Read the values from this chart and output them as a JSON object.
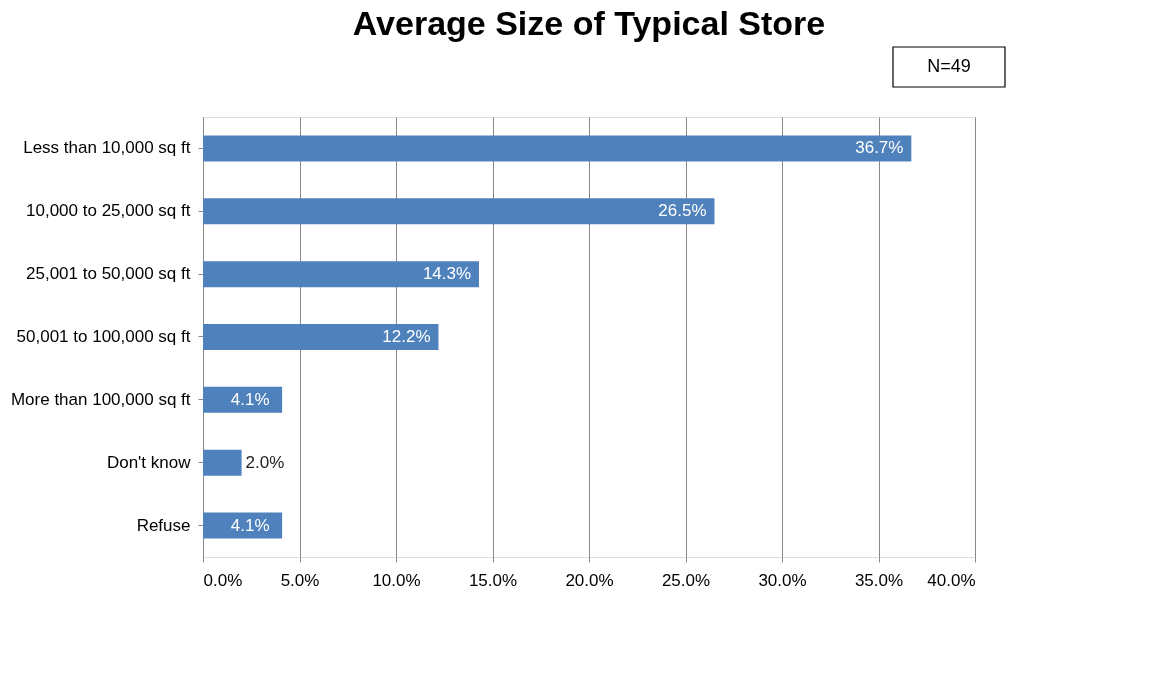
{
  "chart_data": {
    "type": "bar",
    "orientation": "horizontal",
    "title": "Average Size of Typical Store",
    "categories": [
      "Less than 10,000 sq ft",
      "10,000 to 25,000 sq ft",
      "25,001 to 50,000 sq ft",
      "50,001 to 100,000 sq ft",
      "More than 100,000 sq ft",
      "Don't know",
      "Refuse"
    ],
    "values": [
      36.7,
      26.5,
      14.3,
      12.2,
      4.1,
      2.0,
      4.1
    ],
    "value_labels": [
      "36.7%",
      "26.5%",
      "14.3%",
      "12.2%",
      "4.1%",
      "2.0%",
      "4.1%"
    ],
    "color": "#4f81bd",
    "xlim": [
      0,
      40
    ],
    "xticks": [
      {
        "value": 0,
        "label": "0.0%"
      },
      {
        "value": 5,
        "label": "5.0%"
      },
      {
        "value": 10,
        "label": "10.0%"
      },
      {
        "value": 15,
        "label": "15.0%"
      },
      {
        "value": 20,
        "label": "20.0%"
      },
      {
        "value": 25,
        "label": "25.0%"
      },
      {
        "value": 30,
        "label": "30.0%"
      },
      {
        "value": 35,
        "label": "35.0%"
      },
      {
        "value": 40,
        "label": "40.0%"
      }
    ],
    "grid": "x",
    "annotations": [
      "N=49"
    ]
  }
}
